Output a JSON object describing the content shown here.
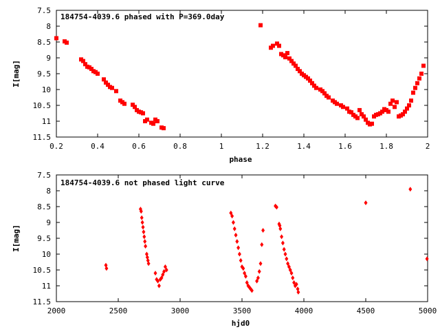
{
  "chart_data": [
    {
      "type": "scatter",
      "title": "184754-4039.6 phased with P=369.0day",
      "xlabel": "phase",
      "ylabel": "I[mag]",
      "xlim": [
        0.2,
        2.0
      ],
      "ylim": [
        7.5,
        11.5
      ],
      "y_inverted": true,
      "grid": false,
      "marker": "square",
      "color": "#ff0000",
      "x_ticks": [
        "0.2",
        "0.4",
        "0.6",
        "0.8",
        "1",
        "1.2",
        "1.4",
        "1.6",
        "1.8",
        "2"
      ],
      "y_ticks": [
        "7.5",
        "8",
        "8.5",
        "9",
        "9.5",
        "10",
        "10.5",
        "11",
        "11.5"
      ],
      "points": [
        [
          0.2,
          8.38
        ],
        [
          0.24,
          8.48
        ],
        [
          0.25,
          8.52
        ],
        [
          0.32,
          9.05
        ],
        [
          0.33,
          9.1
        ],
        [
          0.34,
          9.2
        ],
        [
          0.35,
          9.28
        ],
        [
          0.36,
          9.3
        ],
        [
          0.37,
          9.35
        ],
        [
          0.38,
          9.42
        ],
        [
          0.39,
          9.45
        ],
        [
          0.4,
          9.5
        ],
        [
          0.43,
          9.68
        ],
        [
          0.44,
          9.78
        ],
        [
          0.45,
          9.85
        ],
        [
          0.46,
          9.92
        ],
        [
          0.47,
          9.95
        ],
        [
          0.49,
          10.05
        ],
        [
          0.51,
          10.35
        ],
        [
          0.52,
          10.4
        ],
        [
          0.53,
          10.45
        ],
        [
          0.57,
          10.48
        ],
        [
          0.58,
          10.55
        ],
        [
          0.59,
          10.65
        ],
        [
          0.6,
          10.7
        ],
        [
          0.61,
          10.72
        ],
        [
          0.62,
          10.75
        ],
        [
          0.63,
          11.0
        ],
        [
          0.64,
          10.95
        ],
        [
          0.66,
          11.05
        ],
        [
          0.67,
          11.08
        ],
        [
          0.68,
          10.95
        ],
        [
          0.69,
          11.0
        ],
        [
          0.71,
          11.2
        ],
        [
          0.72,
          11.22
        ],
        [
          1.19,
          7.97
        ],
        [
          1.24,
          8.68
        ],
        [
          1.25,
          8.62
        ],
        [
          1.27,
          8.55
        ],
        [
          1.28,
          8.62
        ],
        [
          1.29,
          8.88
        ],
        [
          1.3,
          8.92
        ],
        [
          1.31,
          8.98
        ],
        [
          1.32,
          8.85
        ],
        [
          1.33,
          9.02
        ],
        [
          1.34,
          9.1
        ],
        [
          1.35,
          9.18
        ],
        [
          1.36,
          9.25
        ],
        [
          1.37,
          9.35
        ],
        [
          1.38,
          9.42
        ],
        [
          1.39,
          9.5
        ],
        [
          1.4,
          9.55
        ],
        [
          1.41,
          9.6
        ],
        [
          1.42,
          9.65
        ],
        [
          1.43,
          9.72
        ],
        [
          1.44,
          9.8
        ],
        [
          1.45,
          9.88
        ],
        [
          1.46,
          9.95
        ],
        [
          1.48,
          10.0
        ],
        [
          1.49,
          10.05
        ],
        [
          1.5,
          10.12
        ],
        [
          1.51,
          10.2
        ],
        [
          1.52,
          10.25
        ],
        [
          1.54,
          10.35
        ],
        [
          1.55,
          10.4
        ],
        [
          1.56,
          10.45
        ],
        [
          1.58,
          10.5
        ],
        [
          1.59,
          10.55
        ],
        [
          1.61,
          10.6
        ],
        [
          1.62,
          10.7
        ],
        [
          1.63,
          10.72
        ],
        [
          1.64,
          10.8
        ],
        [
          1.65,
          10.85
        ],
        [
          1.66,
          10.9
        ],
        [
          1.67,
          10.65
        ],
        [
          1.68,
          10.78
        ],
        [
          1.69,
          10.85
        ],
        [
          1.7,
          10.95
        ],
        [
          1.71,
          11.05
        ],
        [
          1.72,
          11.1
        ],
        [
          1.73,
          11.08
        ],
        [
          1.74,
          10.85
        ],
        [
          1.75,
          10.8
        ],
        [
          1.76,
          10.78
        ],
        [
          1.77,
          10.75
        ],
        [
          1.78,
          10.7
        ],
        [
          1.79,
          10.62
        ],
        [
          1.8,
          10.65
        ],
        [
          1.81,
          10.7
        ],
        [
          1.82,
          10.45
        ],
        [
          1.83,
          10.35
        ],
        [
          1.84,
          10.55
        ],
        [
          1.85,
          10.4
        ],
        [
          1.86,
          10.85
        ],
        [
          1.87,
          10.82
        ],
        [
          1.88,
          10.78
        ],
        [
          1.89,
          10.7
        ],
        [
          1.9,
          10.6
        ],
        [
          1.91,
          10.5
        ],
        [
          1.92,
          10.35
        ],
        [
          1.93,
          10.1
        ],
        [
          1.94,
          9.95
        ],
        [
          1.95,
          9.8
        ],
        [
          1.96,
          9.65
        ],
        [
          1.97,
          9.5
        ],
        [
          1.98,
          9.25
        ]
      ]
    },
    {
      "type": "scatter",
      "title": "184754-4039.6 not phased light curve",
      "xlabel": "hjd0",
      "ylabel": "I[mag]",
      "xlim": [
        2000,
        5000
      ],
      "ylim": [
        7.5,
        11.5
      ],
      "y_inverted": true,
      "grid": false,
      "marker": "diamond",
      "color": "#ff0000",
      "x_ticks": [
        "2000",
        "2500",
        "3000",
        "3500",
        "4000",
        "4500",
        "5000"
      ],
      "y_ticks": [
        "7.5",
        "8",
        "8.5",
        "9",
        "9.5",
        "10",
        "10.5",
        "11",
        "11.5"
      ],
      "points": [
        [
          2400,
          10.35
        ],
        [
          2405,
          10.45
        ],
        [
          2680,
          8.58
        ],
        [
          2685,
          8.65
        ],
        [
          2690,
          8.85
        ],
        [
          2695,
          9.0
        ],
        [
          2700,
          9.15
        ],
        [
          2705,
          9.3
        ],
        [
          2710,
          9.45
        ],
        [
          2715,
          9.6
        ],
        [
          2720,
          9.75
        ],
        [
          2730,
          10.0
        ],
        [
          2735,
          10.1
        ],
        [
          2740,
          10.2
        ],
        [
          2745,
          10.3
        ],
        [
          2800,
          10.6
        ],
        [
          2810,
          10.8
        ],
        [
          2820,
          10.85
        ],
        [
          2830,
          11.0
        ],
        [
          2840,
          10.8
        ],
        [
          2850,
          10.75
        ],
        [
          2860,
          10.65
        ],
        [
          2870,
          10.55
        ],
        [
          2880,
          10.4
        ],
        [
          2890,
          10.5
        ],
        [
          3410,
          8.7
        ],
        [
          3420,
          8.8
        ],
        [
          3430,
          9.0
        ],
        [
          3440,
          9.2
        ],
        [
          3450,
          9.4
        ],
        [
          3460,
          9.6
        ],
        [
          3470,
          9.8
        ],
        [
          3480,
          10.0
        ],
        [
          3490,
          10.2
        ],
        [
          3500,
          10.4
        ],
        [
          3510,
          10.45
        ],
        [
          3520,
          10.6
        ],
        [
          3530,
          10.7
        ],
        [
          3540,
          10.9
        ],
        [
          3550,
          11.0
        ],
        [
          3560,
          11.05
        ],
        [
          3570,
          11.1
        ],
        [
          3580,
          11.15
        ],
        [
          3620,
          10.85
        ],
        [
          3630,
          10.75
        ],
        [
          3640,
          10.55
        ],
        [
          3650,
          10.3
        ],
        [
          3660,
          9.7
        ],
        [
          3670,
          9.25
        ],
        [
          3770,
          8.48
        ],
        [
          3780,
          8.52
        ],
        [
          3800,
          9.05
        ],
        [
          3805,
          9.1
        ],
        [
          3810,
          9.2
        ],
        [
          3820,
          9.45
        ],
        [
          3830,
          9.65
        ],
        [
          3840,
          9.85
        ],
        [
          3850,
          10.0
        ],
        [
          3860,
          10.15
        ],
        [
          3870,
          10.3
        ],
        [
          3880,
          10.4
        ],
        [
          3890,
          10.5
        ],
        [
          3900,
          10.6
        ],
        [
          3910,
          10.75
        ],
        [
          3920,
          10.9
        ],
        [
          3930,
          11.0
        ],
        [
          3940,
          10.95
        ],
        [
          3950,
          11.1
        ],
        [
          3955,
          11.2
        ],
        [
          4500,
          8.38
        ],
        [
          4860,
          7.95
        ],
        [
          4995,
          10.15
        ]
      ]
    }
  ]
}
